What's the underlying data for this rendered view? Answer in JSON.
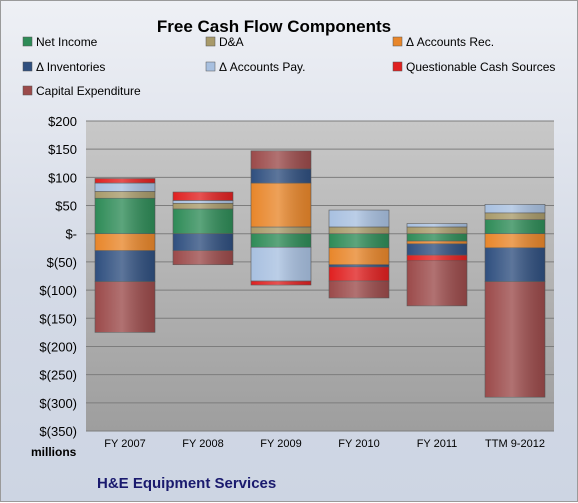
{
  "chart_data": {
    "type": "bar",
    "stacked": true,
    "title": "Free Cash Flow Components",
    "footer": "H&E Equipment Services",
    "unit_label": "millions",
    "categories": [
      "FY 2007",
      "FY 2008",
      "FY 2009",
      "FY 2010",
      "FY 2011",
      "TTM 9-2012"
    ],
    "ylim": [
      -350,
      200
    ],
    "y_ticks": [
      200,
      150,
      100,
      50,
      0,
      -50,
      -100,
      -150,
      -200,
      -250,
      -300,
      -350
    ],
    "y_tick_labels": [
      "$200",
      "$150",
      "$100",
      "$50",
      "$-",
      "$(50)",
      "$(100)",
      "$(150)",
      "$(200)",
      "$(250)",
      "$(300)",
      "$(350)"
    ],
    "grid": true,
    "legend_position": "top",
    "series": [
      {
        "name": "Net Income",
        "color": "#2e8b57",
        "values": [
          63,
          44,
          -24,
          -25,
          -13,
          25
        ]
      },
      {
        "name": "D&A",
        "color": "#a89a6a",
        "values": [
          12,
          10,
          12,
          12,
          12,
          12
        ]
      },
      {
        "name": "Δ Accounts Rec.",
        "color": "#e8862a",
        "values": [
          -30,
          0,
          78,
          -30,
          -5,
          -25
        ]
      },
      {
        "name": "Δ Inventories",
        "color": "#2f4f7f",
        "values": [
          -55,
          -30,
          25,
          -4,
          -20,
          -60
        ]
      },
      {
        "name": "Δ Accounts Pay.",
        "color": "#a8c0e0",
        "values": [
          15,
          5,
          -60,
          30,
          6,
          15
        ]
      },
      {
        "name": "Questionable Cash Sources",
        "color": "#e02020",
        "values": [
          8,
          15,
          -7,
          -25,
          -10,
          0
        ]
      },
      {
        "name": "Capital Expenditure",
        "color": "#9b4a4a",
        "values": [
          -90,
          -25,
          32,
          -30,
          -80,
          -205
        ]
      }
    ]
  }
}
